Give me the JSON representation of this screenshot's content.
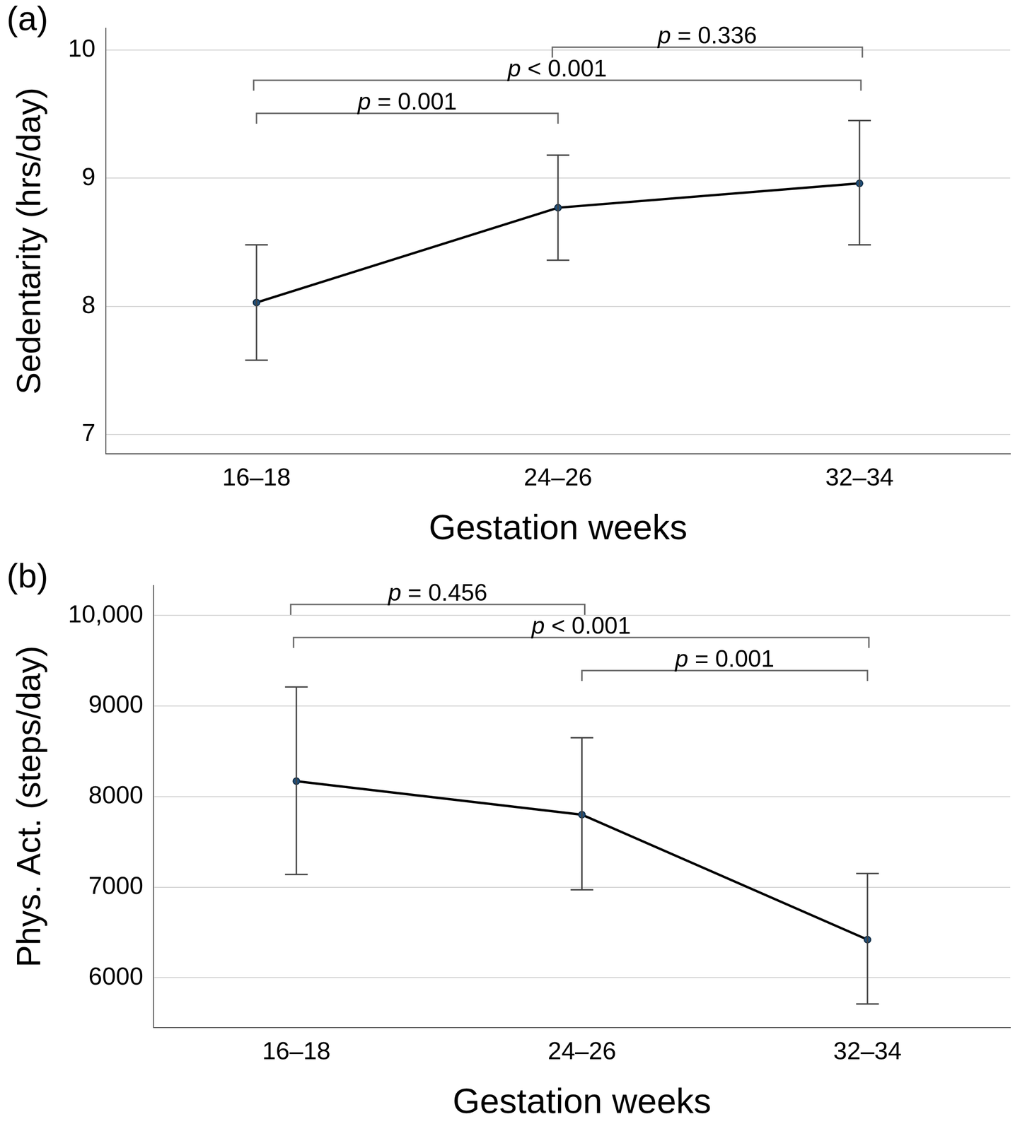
{
  "chart_data": [
    {
      "type": "line",
      "panel": "(a)",
      "x_label": "Gestation weeks",
      "y_label": "Sedentarity (hrs/day)",
      "categories": [
        "16–18",
        "24–26",
        "32–34"
      ],
      "values": [
        8.03,
        8.77,
        8.96
      ],
      "ci_low": [
        7.58,
        8.36,
        8.48
      ],
      "ci_high": [
        8.48,
        9.18,
        9.45
      ],
      "color": "#000000",
      "marker": "circle",
      "ylim": [
        6.85,
        10.17
      ],
      "yticks": [
        7,
        8,
        9,
        10
      ],
      "grid": true,
      "comparisons": [
        {
          "from": "24–26",
          "to": "32–34",
          "label": "p = 0.336"
        },
        {
          "from": "16–18",
          "to": "32–34",
          "label": "p < 0.001"
        },
        {
          "from": "16–18",
          "to": "24–26",
          "label": "p = 0.001"
        }
      ]
    },
    {
      "type": "line",
      "panel": "(b)",
      "x_label": "Gestation weeks",
      "y_label": "Phys. Act. (steps/day)",
      "categories": [
        "16–18",
        "24–26",
        "32–34"
      ],
      "values": [
        8170,
        7800,
        6420
      ],
      "ci_low": [
        7140,
        6970,
        5710
      ],
      "ci_high": [
        9210,
        8650,
        7150
      ],
      "color": "#000000",
      "marker": "circle",
      "ylim": [
        5450,
        10330
      ],
      "yticks": [
        6000,
        7000,
        8000,
        9000,
        {
          "value": 10000,
          "label": "10,000"
        }
      ],
      "grid": true,
      "comparisons": [
        {
          "from": "16–18",
          "to": "24–26",
          "label": "p = 0.456"
        },
        {
          "from": "16–18",
          "to": "32–34",
          "label": "p < 0.001"
        },
        {
          "from": "24–26",
          "to": "32–34",
          "label": "p = 0.001"
        }
      ]
    }
  ]
}
